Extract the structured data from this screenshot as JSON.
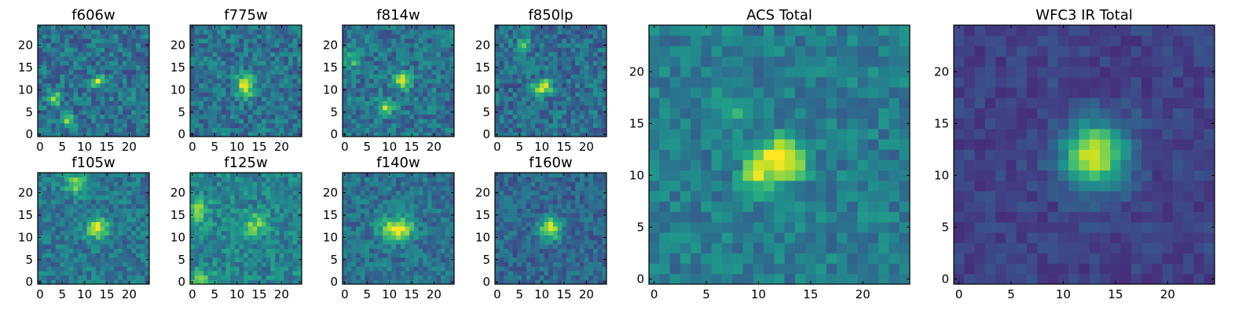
{
  "chart_data": {
    "type": "heatmap",
    "colormap": "viridis",
    "grid": false,
    "panels": [
      {
        "title": "f606w",
        "xticks": [
          "0",
          "5",
          "10",
          "15",
          "20"
        ],
        "yticks": [
          "0",
          "5",
          "10",
          "15",
          "20"
        ],
        "xlim": [
          0,
          24
        ],
        "ylim": [
          0,
          24
        ],
        "peaks": [
          {
            "x": 13,
            "y": 12,
            "amp": 0.45
          },
          {
            "x": 3,
            "y": 8,
            "amp": 0.6
          },
          {
            "x": 6,
            "y": 3,
            "amp": 0.35
          }
        ],
        "noise": 0.34,
        "base": 0.38,
        "sigma": 1.0,
        "seed": 11
      },
      {
        "title": "f775w",
        "xticks": [
          "0",
          "5",
          "10",
          "15",
          "20"
        ],
        "yticks": [
          "0",
          "5",
          "10",
          "15",
          "20"
        ],
        "xlim": [
          0,
          24
        ],
        "ylim": [
          0,
          24
        ],
        "peaks": [
          {
            "x": 12,
            "y": 12,
            "amp": 0.45
          },
          {
            "x": 12,
            "y": 10,
            "amp": 0.4
          }
        ],
        "noise": 0.32,
        "base": 0.38,
        "sigma": 1.3,
        "seed": 23
      },
      {
        "title": "f814w",
        "xticks": [
          "0",
          "5",
          "10",
          "15",
          "20"
        ],
        "yticks": [
          "0",
          "5",
          "10",
          "15",
          "20"
        ],
        "xlim": [
          0,
          24
        ],
        "ylim": [
          0,
          24
        ],
        "peaks": [
          {
            "x": 13,
            "y": 12,
            "amp": 0.55
          },
          {
            "x": 9,
            "y": 6,
            "amp": 0.45
          },
          {
            "x": 2,
            "y": 17,
            "amp": 0.35
          }
        ],
        "noise": 0.32,
        "base": 0.38,
        "sigma": 1.3,
        "seed": 37
      },
      {
        "title": "f850lp",
        "xticks": [
          "0",
          "5",
          "10",
          "15",
          "20"
        ],
        "yticks": [
          "0",
          "5",
          "10",
          "15",
          "20"
        ],
        "xlim": [
          0,
          24
        ],
        "ylim": [
          0,
          24
        ],
        "peaks": [
          {
            "x": 11,
            "y": 11,
            "amp": 0.5
          },
          {
            "x": 9,
            "y": 10,
            "amp": 0.45
          },
          {
            "x": 6,
            "y": 20,
            "amp": 0.3
          }
        ],
        "noise": 0.32,
        "base": 0.36,
        "sigma": 1.1,
        "seed": 41
      },
      {
        "title": "f105w",
        "xticks": [
          "0",
          "5",
          "10",
          "15",
          "20"
        ],
        "yticks": [
          "0",
          "5",
          "10",
          "15",
          "20"
        ],
        "xlim": [
          0,
          24
        ],
        "ylim": [
          0,
          24
        ],
        "peaks": [
          {
            "x": 13,
            "y": 12,
            "amp": 0.55
          },
          {
            "x": 8,
            "y": 22,
            "amp": 0.45
          }
        ],
        "noise": 0.28,
        "base": 0.4,
        "sigma": 1.6,
        "seed": 53
      },
      {
        "title": "f125w",
        "xticks": [
          "0",
          "5",
          "10",
          "15",
          "20"
        ],
        "yticks": [
          "0",
          "5",
          "10",
          "15",
          "20"
        ],
        "xlim": [
          0,
          24
        ],
        "ylim": [
          0,
          24
        ],
        "peaks": [
          {
            "x": 14,
            "y": 13,
            "amp": 0.35
          },
          {
            "x": 1,
            "y": 16,
            "amp": 0.35
          },
          {
            "x": 2,
            "y": 0,
            "amp": 0.3
          }
        ],
        "noise": 0.3,
        "base": 0.45,
        "sigma": 1.8,
        "seed": 67
      },
      {
        "title": "f140w",
        "xticks": [
          "0",
          "5",
          "10",
          "15",
          "20"
        ],
        "yticks": [
          "0",
          "5",
          "10",
          "15",
          "20"
        ],
        "xlim": [
          0,
          24
        ],
        "ylim": [
          0,
          24
        ],
        "peaks": [
          {
            "x": 13,
            "y": 12,
            "amp": 0.5
          },
          {
            "x": 10,
            "y": 12,
            "amp": 0.3
          }
        ],
        "noise": 0.28,
        "base": 0.38,
        "sigma": 1.8,
        "seed": 71
      },
      {
        "title": "f160w",
        "xticks": [
          "0",
          "5",
          "10",
          "15",
          "20"
        ],
        "yticks": [
          "0",
          "5",
          "10",
          "15",
          "20"
        ],
        "xlim": [
          0,
          24
        ],
        "ylim": [
          0,
          24
        ],
        "peaks": [
          {
            "x": 12,
            "y": 12,
            "amp": 0.6
          }
        ],
        "noise": 0.26,
        "base": 0.33,
        "sigma": 1.7,
        "seed": 83
      },
      {
        "title": "ACS Total",
        "xticks": [
          "0",
          "5",
          "10",
          "15",
          "20"
        ],
        "yticks": [
          "0",
          "5",
          "10",
          "15",
          "20"
        ],
        "xlim": [
          0,
          24
        ],
        "ylim": [
          0,
          24
        ],
        "peaks": [
          {
            "x": 12,
            "y": 12,
            "amp": 0.5
          },
          {
            "x": 10,
            "y": 10,
            "amp": 0.45
          },
          {
            "x": 13,
            "y": 11,
            "amp": 0.3
          },
          {
            "x": 7,
            "y": 16,
            "amp": 0.2
          }
        ],
        "noise": 0.24,
        "base": 0.42,
        "sigma": 1.2,
        "seed": 97
      },
      {
        "title": "WFC3 IR Total",
        "xticks": [
          "0",
          "5",
          "10",
          "15",
          "20"
        ],
        "yticks": [
          "0",
          "5",
          "10",
          "15",
          "20"
        ],
        "xlim": [
          0,
          24
        ],
        "ylim": [
          0,
          24
        ],
        "peaks": [
          {
            "x": 13,
            "y": 12,
            "amp": 0.72
          }
        ],
        "noise": 0.14,
        "base": 0.2,
        "sigma": 2.2,
        "seed": 101
      }
    ]
  }
}
